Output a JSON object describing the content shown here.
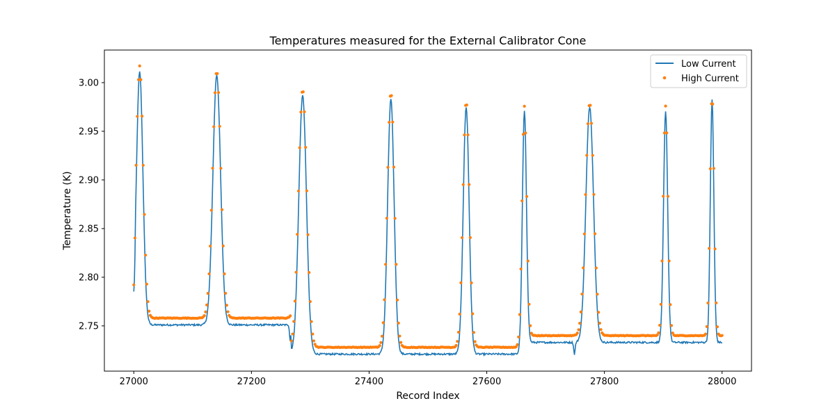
{
  "chart_data": {
    "type": "line",
    "title": "Temperatures measured for the External Calibrator Cone",
    "xlabel": "Record Index",
    "ylabel": "Temperature (K)",
    "xlim": [
      26950,
      28050
    ],
    "ylim": [
      2.7035,
      3.0335
    ],
    "x_ticks": [
      27000,
      27200,
      27400,
      27600,
      27800,
      28000
    ],
    "x_tick_labels": [
      "27000",
      "27200",
      "27400",
      "27600",
      "27800",
      "28000"
    ],
    "y_ticks": [
      2.75,
      2.8,
      2.85,
      2.9,
      2.95,
      3.0
    ],
    "y_tick_labels": [
      "2.75",
      "2.80",
      "2.85",
      "2.90",
      "2.95",
      "3.00"
    ],
    "grid": false,
    "legend_position": "top-right",
    "colors": {
      "low": "#1f77b4",
      "high": "#ff7f0e"
    },
    "series": [
      {
        "name": "Low Current",
        "style": "line",
        "segments": [
          {
            "start": 27000,
            "end": 27268,
            "baseline": 2.751
          },
          {
            "start": 27268,
            "end": 27665,
            "baseline": 2.721
          },
          {
            "start": 27665,
            "end": 27850,
            "baseline": 2.733
          },
          {
            "start": 27850,
            "end": 28000,
            "baseline": 2.733
          }
        ],
        "start_value": 2.785,
        "peaks": [
          {
            "x": 27010,
            "peak": 3.011,
            "width": 5.5
          },
          {
            "x": 27141,
            "peak": 3.008,
            "width": 6.5
          },
          {
            "x": 27287,
            "peak": 2.987,
            "width": 6.5
          },
          {
            "x": 27437,
            "peak": 2.983,
            "width": 5.5
          },
          {
            "x": 27565,
            "peak": 2.975,
            "width": 5.0
          },
          {
            "x": 27664,
            "peak": 2.971,
            "width": 3.5
          },
          {
            "x": 27775,
            "peak": 2.975,
            "width": 6.5
          },
          {
            "x": 27904,
            "peak": 2.97,
            "width": 3.5
          },
          {
            "x": 27983,
            "peak": 2.982,
            "width": 3.0
          }
        ],
        "notches": [
          {
            "x": 27266,
            "value": 2.733
          },
          {
            "x": 27749,
            "value": 2.721
          }
        ]
      },
      {
        "name": "High Current",
        "style": "scatter",
        "segments": [
          {
            "start": 27000,
            "end": 27268,
            "baseline": 2.758
          },
          {
            "start": 27268,
            "end": 27665,
            "baseline": 2.728
          },
          {
            "start": 27665,
            "end": 28000,
            "baseline": 2.74
          }
        ],
        "start_value": 2.792,
        "peaks": [
          {
            "x": 27010,
            "peak": 3.017,
            "width": 6.0
          },
          {
            "x": 27141,
            "peak": 3.012,
            "width": 7.0
          },
          {
            "x": 27287,
            "peak": 2.993,
            "width": 7.0
          },
          {
            "x": 27437,
            "peak": 2.99,
            "width": 6.0
          },
          {
            "x": 27565,
            "peak": 2.981,
            "width": 5.5
          },
          {
            "x": 27664,
            "peak": 2.976,
            "width": 4.0
          },
          {
            "x": 27775,
            "peak": 2.979,
            "width": 7.0
          },
          {
            "x": 27904,
            "peak": 2.976,
            "width": 4.0
          },
          {
            "x": 27983,
            "peak": 2.988,
            "width": 3.5
          }
        ],
        "sample_every": 2
      }
    ]
  }
}
